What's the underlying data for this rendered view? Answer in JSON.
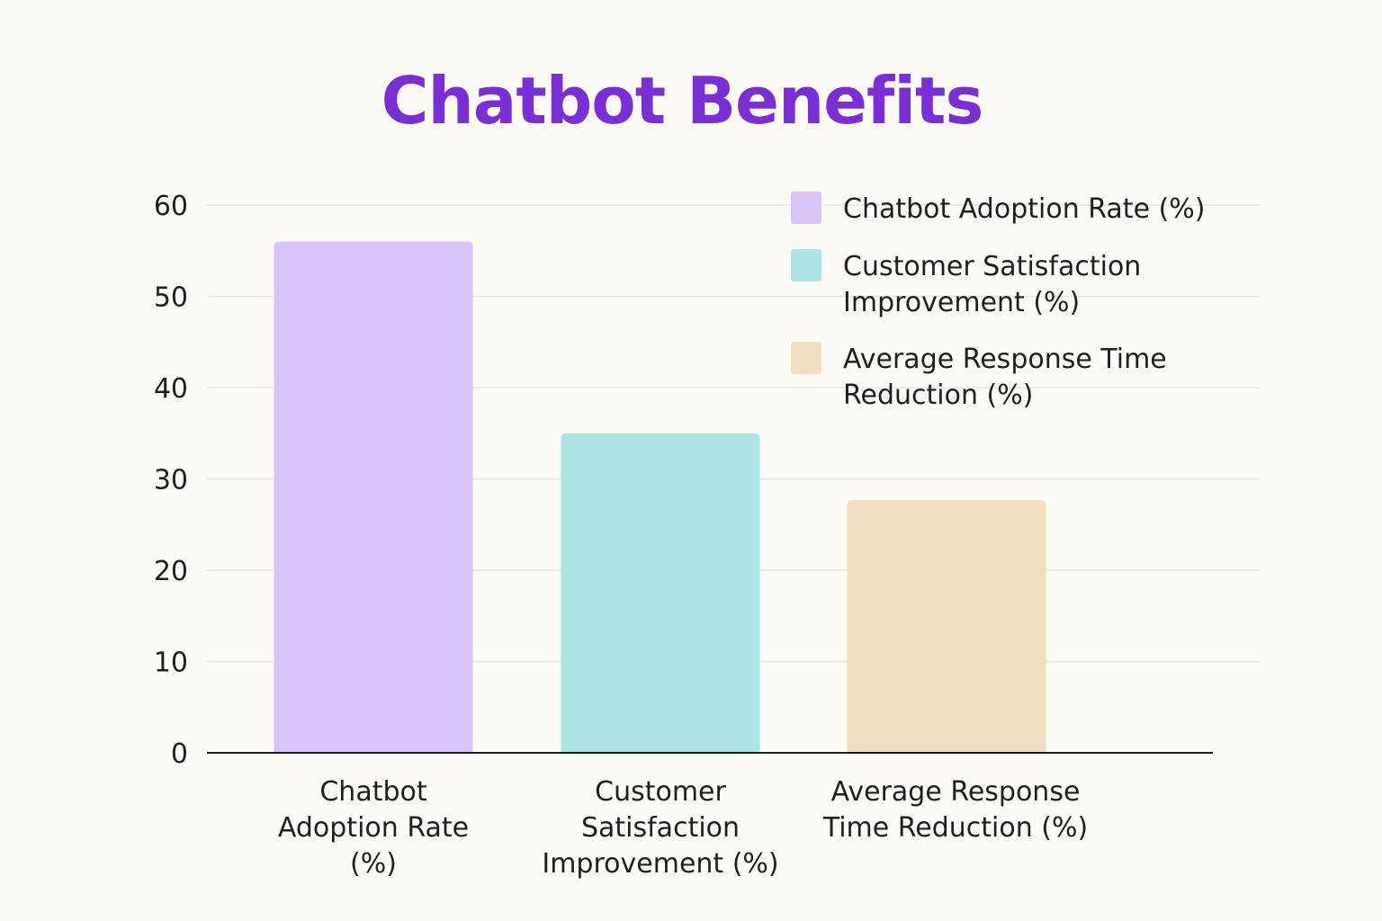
{
  "chart_data": {
    "type": "bar",
    "title": "Chatbot Benefits",
    "xlabel": "",
    "ylabel": "",
    "ylim": [
      0,
      60
    ],
    "yticks": [
      0,
      10,
      20,
      30,
      40,
      50,
      60
    ],
    "categories": [
      "Chatbot Adoption Rate (%)",
      "Customer Satisfaction Improvement (%)",
      "Average Response Time Reduction (%)"
    ],
    "category_label_lines": [
      [
        "Chatbot",
        "Adoption Rate",
        "(%)"
      ],
      [
        "Customer",
        "Satisfaction",
        "Improvement   (%)"
      ],
      [
        "Average Response",
        "Time Reduction (%)"
      ]
    ],
    "values": [
      56,
      35,
      27.7
    ],
    "colors": [
      "#d9c3f8",
      "#ade5e2",
      "#f2dec2"
    ],
    "grid": true,
    "legend": {
      "placement": "top-right",
      "entries": [
        {
          "label_lines": [
            "Chatbot  Adoption Rate (%)"
          ],
          "color": "#d9c3f8"
        },
        {
          "label_lines": [
            "Customer Satisfaction",
            "Improvement (%)"
          ],
          "color": "#ade5e2"
        },
        {
          "label_lines": [
            "Average Response Time",
            "Reduction (%)"
          ],
          "color": "#f2dec2"
        }
      ]
    }
  },
  "colors": {
    "title": "#7a2ed6",
    "background": "#fcfbf6",
    "grid": "#e6e4df",
    "axis": "#1a1a1a"
  }
}
